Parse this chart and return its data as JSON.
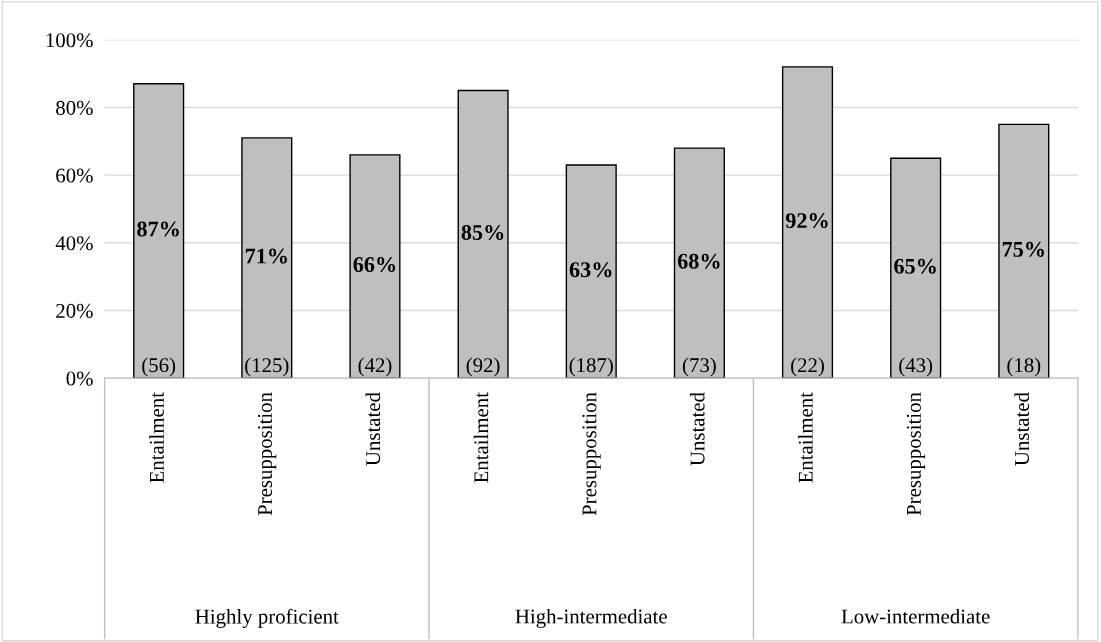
{
  "chart_data": {
    "type": "bar",
    "categories": [
      "Entailment",
      "Presupposition",
      "Unstated",
      "Entailment",
      "Presupposition",
      "Unstated",
      "Entailment",
      "Presupposition",
      "Unstated"
    ],
    "values": [
      87,
      71,
      66,
      85,
      63,
      68,
      92,
      65,
      75
    ],
    "value_labels": [
      "87%",
      "71%",
      "66%",
      "85%",
      "63%",
      "68%",
      "92%",
      "65%",
      "75%"
    ],
    "color": "#bfbfbf",
    "ylim": [
      0,
      100
    ],
    "yticks": [
      {
        "value": 0,
        "label": "0%"
      },
      {
        "value": 20,
        "label": "20%"
      },
      {
        "value": 40,
        "label": "40%"
      },
      {
        "value": 60,
        "label": "60%"
      },
      {
        "value": 80,
        "label": "80%"
      },
      {
        "value": 100,
        "label": "100%"
      }
    ],
    "grid": "y",
    "annotations": [
      "(56)",
      "(125)",
      "(42)",
      "(92)",
      "(187)",
      "(73)",
      "(22)",
      "(43)",
      "(18)",
      "Highly proficient",
      "High-intermediate",
      "Low-intermediate"
    ]
  }
}
